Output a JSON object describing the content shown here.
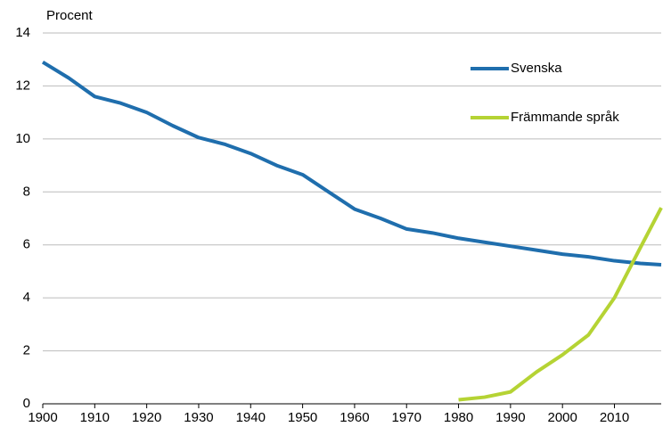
{
  "chart_data": {
    "type": "line",
    "y_label": "Procent",
    "x": [
      1900,
      1905,
      1910,
      1915,
      1920,
      1925,
      1930,
      1935,
      1940,
      1945,
      1950,
      1955,
      1960,
      1965,
      1970,
      1975,
      1980,
      1985,
      1990,
      1995,
      2000,
      2005,
      2010,
      2015,
      2019
    ],
    "series": [
      {
        "name": "Svenska",
        "color": "#1f6ead",
        "values": [
          12.9,
          12.3,
          11.6,
          11.35,
          11.0,
          10.5,
          10.05,
          9.8,
          9.45,
          9.0,
          8.65,
          8.0,
          7.35,
          7.0,
          6.6,
          6.45,
          6.25,
          6.1,
          5.95,
          5.8,
          5.65,
          5.55,
          5.4,
          5.3,
          5.25
        ]
      },
      {
        "name": "Främmande språk",
        "color": "#b5d334",
        "values": [
          null,
          null,
          null,
          null,
          null,
          null,
          null,
          null,
          null,
          null,
          null,
          null,
          null,
          null,
          null,
          null,
          0.15,
          0.25,
          0.45,
          1.2,
          1.85,
          2.6,
          4.0,
          5.9,
          7.4
        ]
      }
    ],
    "xlim": [
      1900,
      2019
    ],
    "xticks": [
      1900,
      1910,
      1920,
      1930,
      1940,
      1950,
      1960,
      1970,
      1980,
      1990,
      2000,
      2010
    ],
    "ylim": [
      0,
      14
    ],
    "yticks": [
      0,
      2,
      4,
      6,
      8,
      10,
      12,
      14
    ],
    "grid": true,
    "legend": "top-right"
  }
}
